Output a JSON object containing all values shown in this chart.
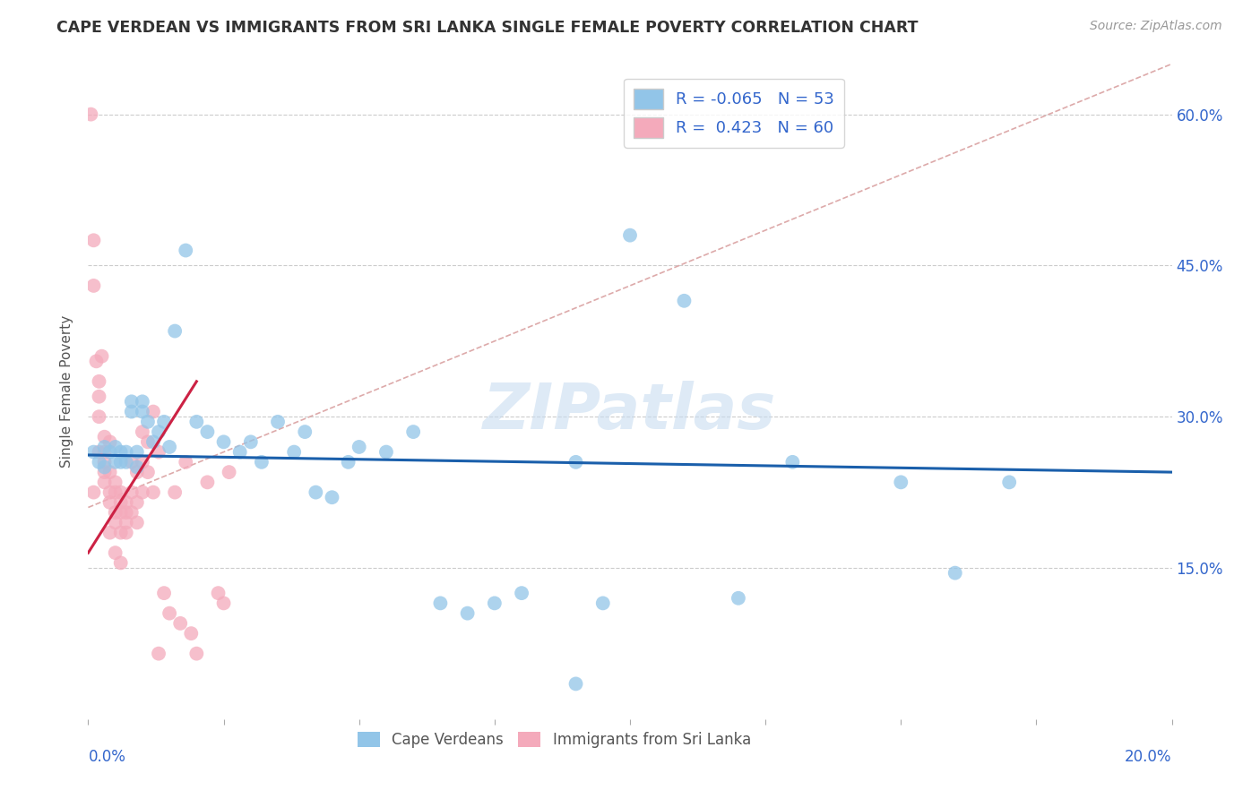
{
  "title": "CAPE VERDEAN VS IMMIGRANTS FROM SRI LANKA SINGLE FEMALE POVERTY CORRELATION CHART",
  "source": "Source: ZipAtlas.com",
  "ylabel": "Single Female Poverty",
  "x_min": 0.0,
  "x_max": 0.2,
  "y_min": 0.0,
  "y_max": 0.65,
  "y_ticks": [
    0.15,
    0.3,
    0.45,
    0.6
  ],
  "x_ticks": [
    0.0,
    0.025,
    0.05,
    0.075,
    0.1,
    0.125,
    0.15,
    0.175,
    0.2
  ],
  "blue_color": "#92C5E8",
  "pink_color": "#F4AABB",
  "blue_line_color": "#1A5FAB",
  "pink_line_color": "#CC2244",
  "dashed_line_color": "#DDAAAA",
  "legend_blue_R": "-0.065",
  "legend_blue_N": "53",
  "legend_pink_R": "0.423",
  "legend_pink_N": "60",
  "watermark": "ZIPatlas",
  "blue_line_x0": 0.0,
  "blue_line_y0": 0.262,
  "blue_line_x1": 0.2,
  "blue_line_y1": 0.245,
  "pink_line_x0": 0.0,
  "pink_line_y0": 0.165,
  "pink_line_x1": 0.02,
  "pink_line_y1": 0.335,
  "dash_line_x0": 0.0,
  "dash_line_y0": 0.21,
  "dash_line_x1": 0.2,
  "dash_line_y1": 0.65,
  "blue_dots": [
    [
      0.001,
      0.265
    ],
    [
      0.002,
      0.255
    ],
    [
      0.003,
      0.27
    ],
    [
      0.003,
      0.25
    ],
    [
      0.004,
      0.265
    ],
    [
      0.005,
      0.27
    ],
    [
      0.005,
      0.255
    ],
    [
      0.006,
      0.265
    ],
    [
      0.006,
      0.255
    ],
    [
      0.007,
      0.265
    ],
    [
      0.007,
      0.255
    ],
    [
      0.008,
      0.315
    ],
    [
      0.008,
      0.305
    ],
    [
      0.009,
      0.25
    ],
    [
      0.009,
      0.265
    ],
    [
      0.01,
      0.315
    ],
    [
      0.01,
      0.305
    ],
    [
      0.011,
      0.295
    ],
    [
      0.012,
      0.275
    ],
    [
      0.013,
      0.285
    ],
    [
      0.014,
      0.295
    ],
    [
      0.015,
      0.27
    ],
    [
      0.016,
      0.385
    ],
    [
      0.018,
      0.465
    ],
    [
      0.02,
      0.295
    ],
    [
      0.022,
      0.285
    ],
    [
      0.025,
      0.275
    ],
    [
      0.028,
      0.265
    ],
    [
      0.03,
      0.275
    ],
    [
      0.032,
      0.255
    ],
    [
      0.035,
      0.295
    ],
    [
      0.038,
      0.265
    ],
    [
      0.04,
      0.285
    ],
    [
      0.042,
      0.225
    ],
    [
      0.045,
      0.22
    ],
    [
      0.048,
      0.255
    ],
    [
      0.05,
      0.27
    ],
    [
      0.055,
      0.265
    ],
    [
      0.06,
      0.285
    ],
    [
      0.065,
      0.115
    ],
    [
      0.07,
      0.105
    ],
    [
      0.075,
      0.115
    ],
    [
      0.08,
      0.125
    ],
    [
      0.09,
      0.255
    ],
    [
      0.095,
      0.115
    ],
    [
      0.1,
      0.48
    ],
    [
      0.11,
      0.415
    ],
    [
      0.12,
      0.12
    ],
    [
      0.13,
      0.255
    ],
    [
      0.15,
      0.235
    ],
    [
      0.16,
      0.145
    ],
    [
      0.17,
      0.235
    ],
    [
      0.09,
      0.035
    ]
  ],
  "pink_dots": [
    [
      0.0005,
      0.6
    ],
    [
      0.001,
      0.475
    ],
    [
      0.001,
      0.43
    ],
    [
      0.0015,
      0.355
    ],
    [
      0.002,
      0.335
    ],
    [
      0.002,
      0.32
    ],
    [
      0.002,
      0.3
    ],
    [
      0.0025,
      0.36
    ],
    [
      0.003,
      0.28
    ],
    [
      0.003,
      0.265
    ],
    [
      0.003,
      0.255
    ],
    [
      0.003,
      0.245
    ],
    [
      0.004,
      0.275
    ],
    [
      0.004,
      0.245
    ],
    [
      0.004,
      0.225
    ],
    [
      0.004,
      0.215
    ],
    [
      0.005,
      0.235
    ],
    [
      0.005,
      0.225
    ],
    [
      0.005,
      0.205
    ],
    [
      0.005,
      0.195
    ],
    [
      0.006,
      0.225
    ],
    [
      0.006,
      0.215
    ],
    [
      0.006,
      0.205
    ],
    [
      0.006,
      0.185
    ],
    [
      0.007,
      0.215
    ],
    [
      0.007,
      0.205
    ],
    [
      0.007,
      0.195
    ],
    [
      0.007,
      0.185
    ],
    [
      0.008,
      0.255
    ],
    [
      0.008,
      0.225
    ],
    [
      0.008,
      0.205
    ],
    [
      0.009,
      0.245
    ],
    [
      0.009,
      0.215
    ],
    [
      0.009,
      0.195
    ],
    [
      0.01,
      0.285
    ],
    [
      0.01,
      0.255
    ],
    [
      0.01,
      0.225
    ],
    [
      0.011,
      0.275
    ],
    [
      0.011,
      0.245
    ],
    [
      0.012,
      0.305
    ],
    [
      0.012,
      0.225
    ],
    [
      0.013,
      0.265
    ],
    [
      0.013,
      0.065
    ],
    [
      0.014,
      0.125
    ],
    [
      0.015,
      0.105
    ],
    [
      0.016,
      0.225
    ],
    [
      0.017,
      0.095
    ],
    [
      0.018,
      0.255
    ],
    [
      0.019,
      0.085
    ],
    [
      0.02,
      0.065
    ],
    [
      0.022,
      0.235
    ],
    [
      0.024,
      0.125
    ],
    [
      0.025,
      0.115
    ],
    [
      0.026,
      0.245
    ],
    [
      0.001,
      0.225
    ],
    [
      0.002,
      0.265
    ],
    [
      0.003,
      0.235
    ],
    [
      0.004,
      0.185
    ],
    [
      0.005,
      0.165
    ],
    [
      0.006,
      0.155
    ]
  ]
}
